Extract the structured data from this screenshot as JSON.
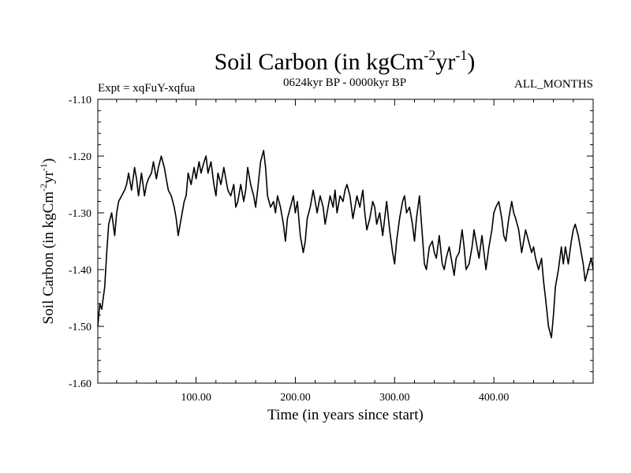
{
  "chart_data": {
    "type": "line",
    "title": {
      "main": "Soil Carbon (in kgCm",
      "sup1": "-2",
      "mid": "yr",
      "sup2": "-1",
      "end": ")"
    },
    "subtitle_left": "Expt = xqFuY-xqfua",
    "subtitle_center": "0624kyr BP - 0000kyr BP",
    "subtitle_right": "ALL_MONTHS",
    "xlabel": "Time (in years since start)",
    "ylabel": {
      "main": "Soil Carbon (in kgCm",
      "sup1": "-2",
      "mid": "yr",
      "sup2": "-1",
      "end": ")"
    },
    "xlim": [
      1,
      500
    ],
    "ylim": [
      -1.6,
      -1.1
    ],
    "x_ticks": [
      {
        "value": 100,
        "label": "100.00"
      },
      {
        "value": 200,
        "label": "200.00"
      },
      {
        "value": 300,
        "label": "300.00"
      },
      {
        "value": 400,
        "label": "400.00"
      }
    ],
    "y_ticks": [
      {
        "value": -1.1,
        "label": "-1.10"
      },
      {
        "value": -1.2,
        "label": "-1.20"
      },
      {
        "value": -1.3,
        "label": "-1.30"
      },
      {
        "value": -1.4,
        "label": "-1.40"
      },
      {
        "value": -1.5,
        "label": "-1.50"
      },
      {
        "value": -1.6,
        "label": "-1.60"
      }
    ],
    "series": [
      {
        "name": "Soil Carbon",
        "color": "#000000",
        "x": [
          1,
          3,
          5,
          8,
          10,
          12,
          15,
          18,
          20,
          22,
          25,
          28,
          30,
          32,
          35,
          38,
          40,
          42,
          45,
          48,
          50,
          52,
          55,
          57,
          60,
          62,
          65,
          68,
          70,
          72,
          75,
          78,
          80,
          82,
          85,
          88,
          90,
          92,
          95,
          98,
          100,
          103,
          105,
          108,
          110,
          112,
          115,
          118,
          120,
          122,
          125,
          128,
          130,
          132,
          135,
          138,
          140,
          142,
          145,
          148,
          150,
          152,
          155,
          158,
          160,
          162,
          165,
          168,
          170,
          172,
          175,
          178,
          180,
          182,
          185,
          188,
          190,
          192,
          195,
          198,
          200,
          202,
          205,
          208,
          210,
          212,
          215,
          218,
          220,
          222,
          225,
          228,
          230,
          232,
          235,
          238,
          240,
          242,
          245,
          248,
          250,
          252,
          255,
          258,
          260,
          262,
          265,
          268,
          270,
          272,
          275,
          278,
          280,
          282,
          285,
          288,
          290,
          292,
          295,
          298,
          300,
          302,
          305,
          308,
          310,
          312,
          315,
          318,
          320,
          322,
          325,
          328,
          330,
          332,
          335,
          338,
          340,
          342,
          345,
          348,
          350,
          352,
          355,
          358,
          360,
          362,
          365,
          368,
          370,
          372,
          375,
          378,
          380,
          382,
          385,
          388,
          390,
          392,
          395,
          398,
          400,
          402,
          405,
          408,
          410,
          412,
          415,
          418,
          420,
          422,
          425,
          428,
          430,
          432,
          435,
          438,
          440,
          442,
          445,
          448,
          450,
          452,
          455,
          458,
          460,
          462,
          465,
          468,
          470,
          472,
          475,
          478,
          480,
          482,
          485,
          488,
          490,
          492,
          495,
          498,
          500
        ],
        "values": [
          -1.5,
          -1.46,
          -1.47,
          -1.43,
          -1.37,
          -1.32,
          -1.3,
          -1.34,
          -1.3,
          -1.28,
          -1.27,
          -1.26,
          -1.25,
          -1.23,
          -1.26,
          -1.22,
          -1.24,
          -1.27,
          -1.23,
          -1.27,
          -1.25,
          -1.24,
          -1.23,
          -1.21,
          -1.24,
          -1.22,
          -1.2,
          -1.22,
          -1.24,
          -1.26,
          -1.27,
          -1.29,
          -1.31,
          -1.34,
          -1.31,
          -1.28,
          -1.27,
          -1.23,
          -1.25,
          -1.22,
          -1.24,
          -1.21,
          -1.23,
          -1.21,
          -1.2,
          -1.23,
          -1.21,
          -1.25,
          -1.27,
          -1.23,
          -1.25,
          -1.22,
          -1.24,
          -1.26,
          -1.27,
          -1.25,
          -1.29,
          -1.28,
          -1.25,
          -1.28,
          -1.26,
          -1.22,
          -1.25,
          -1.27,
          -1.29,
          -1.26,
          -1.21,
          -1.19,
          -1.22,
          -1.27,
          -1.29,
          -1.28,
          -1.3,
          -1.27,
          -1.29,
          -1.32,
          -1.35,
          -1.31,
          -1.29,
          -1.27,
          -1.3,
          -1.28,
          -1.34,
          -1.37,
          -1.35,
          -1.31,
          -1.29,
          -1.26,
          -1.28,
          -1.3,
          -1.27,
          -1.29,
          -1.32,
          -1.3,
          -1.27,
          -1.29,
          -1.26,
          -1.3,
          -1.27,
          -1.28,
          -1.26,
          -1.25,
          -1.27,
          -1.31,
          -1.29,
          -1.27,
          -1.29,
          -1.26,
          -1.3,
          -1.33,
          -1.31,
          -1.28,
          -1.29,
          -1.32,
          -1.3,
          -1.34,
          -1.31,
          -1.28,
          -1.33,
          -1.37,
          -1.39,
          -1.35,
          -1.31,
          -1.28,
          -1.27,
          -1.3,
          -1.29,
          -1.32,
          -1.35,
          -1.31,
          -1.27,
          -1.34,
          -1.39,
          -1.4,
          -1.36,
          -1.35,
          -1.37,
          -1.38,
          -1.34,
          -1.39,
          -1.4,
          -1.38,
          -1.36,
          -1.39,
          -1.41,
          -1.38,
          -1.37,
          -1.33,
          -1.36,
          -1.4,
          -1.39,
          -1.36,
          -1.33,
          -1.35,
          -1.38,
          -1.34,
          -1.37,
          -1.4,
          -1.36,
          -1.33,
          -1.3,
          -1.29,
          -1.28,
          -1.31,
          -1.34,
          -1.35,
          -1.31,
          -1.28,
          -1.3,
          -1.31,
          -1.33,
          -1.37,
          -1.35,
          -1.33,
          -1.35,
          -1.37,
          -1.36,
          -1.38,
          -1.4,
          -1.38,
          -1.42,
          -1.45,
          -1.5,
          -1.52,
          -1.48,
          -1.43,
          -1.4,
          -1.36,
          -1.39,
          -1.36,
          -1.39,
          -1.35,
          -1.33,
          -1.32,
          -1.34,
          -1.37,
          -1.39,
          -1.42,
          -1.4,
          -1.38,
          -1.4
        ]
      }
    ]
  }
}
